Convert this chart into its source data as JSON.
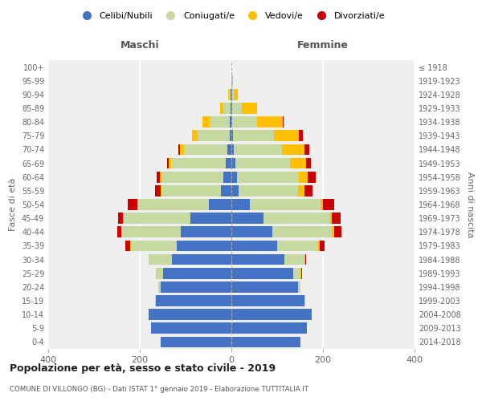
{
  "age_groups": [
    "0-4",
    "5-9",
    "10-14",
    "15-19",
    "20-24",
    "25-29",
    "30-34",
    "35-39",
    "40-44",
    "45-49",
    "50-54",
    "55-59",
    "60-64",
    "65-69",
    "70-74",
    "75-79",
    "80-84",
    "85-89",
    "90-94",
    "95-99",
    "100+"
  ],
  "birth_years": [
    "2014-2018",
    "2009-2013",
    "2004-2008",
    "1999-2003",
    "1994-1998",
    "1989-1993",
    "1984-1988",
    "1979-1983",
    "1974-1978",
    "1969-1973",
    "1964-1968",
    "1959-1963",
    "1954-1958",
    "1949-1953",
    "1944-1948",
    "1939-1943",
    "1934-1938",
    "1929-1933",
    "1924-1928",
    "1919-1923",
    "≤ 1918"
  ],
  "males": {
    "celibi": [
      155,
      175,
      180,
      165,
      155,
      150,
      130,
      120,
      110,
      90,
      50,
      22,
      18,
      12,
      8,
      4,
      3,
      2,
      1,
      0,
      0
    ],
    "coniugati": [
      0,
      0,
      0,
      1,
      5,
      15,
      50,
      100,
      130,
      145,
      155,
      130,
      135,
      120,
      95,
      70,
      45,
      15,
      4,
      0,
      0
    ],
    "vedovi": [
      0,
      0,
      0,
      0,
      0,
      0,
      0,
      1,
      1,
      1,
      1,
      2,
      3,
      5,
      10,
      12,
      15,
      8,
      2,
      0,
      0
    ],
    "divorziati": [
      0,
      0,
      0,
      0,
      0,
      0,
      0,
      10,
      8,
      12,
      20,
      12,
      8,
      4,
      2,
      0,
      0,
      0,
      0,
      0,
      0
    ]
  },
  "females": {
    "nubili": [
      150,
      165,
      175,
      160,
      145,
      135,
      115,
      100,
      90,
      70,
      40,
      15,
      12,
      8,
      5,
      3,
      2,
      2,
      1,
      0,
      0
    ],
    "coniugate": [
      0,
      0,
      0,
      2,
      5,
      15,
      45,
      90,
      130,
      145,
      155,
      130,
      135,
      120,
      105,
      90,
      55,
      20,
      5,
      2,
      0
    ],
    "vedove": [
      0,
      0,
      0,
      0,
      1,
      2,
      2,
      3,
      5,
      5,
      5,
      15,
      20,
      35,
      50,
      55,
      55,
      35,
      8,
      2,
      0
    ],
    "divorziate": [
      0,
      0,
      0,
      0,
      0,
      2,
      2,
      10,
      15,
      18,
      25,
      18,
      18,
      10,
      10,
      8,
      2,
      0,
      0,
      0,
      0
    ]
  },
  "colors": {
    "celibi": "#4472c4",
    "coniugati": "#c5d9a0",
    "vedovi": "#ffc000",
    "divorziati": "#cc0000"
  },
  "legend_labels": [
    "Celibi/Nubili",
    "Coniugati/e",
    "Vedovi/e",
    "Divorziati/e"
  ],
  "title": "Popolazione per età, sesso e stato civile - 2019",
  "subtitle": "COMUNE DI VILLONGO (BG) - Dati ISTAT 1° gennaio 2019 - Elaborazione TUTTITALIA.IT",
  "label_maschi": "Maschi",
  "label_femmine": "Femmine",
  "ylabel_left": "Fasce di età",
  "ylabel_right": "Anni di nascita",
  "xlim": 400,
  "bg_color": "#efefef"
}
